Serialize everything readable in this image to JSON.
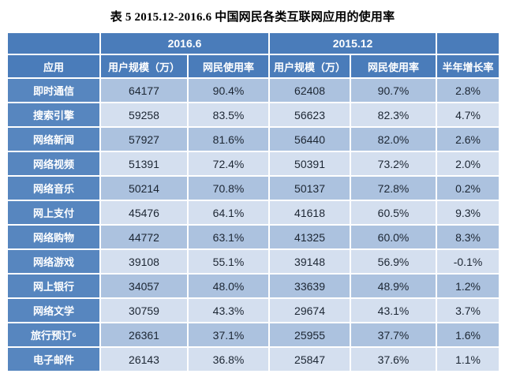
{
  "title": "表 5 2015.12-2016.6 中国网民各类互联网应用的使用率",
  "table": {
    "periods": {
      "p2016": "2016.6",
      "p2015": "2015.12"
    },
    "columns": [
      "应用",
      "用户规模（万）",
      "网民使用率",
      "用户规模（万）",
      "网民使用率",
      "半年增长率"
    ],
    "rows": [
      [
        "即时通信",
        "64177",
        "90.4%",
        "62408",
        "90.7%",
        "2.8%"
      ],
      [
        "搜索引擎",
        "59258",
        "83.5%",
        "56623",
        "82.3%",
        "4.7%"
      ],
      [
        "网络新闻",
        "57927",
        "81.6%",
        "56440",
        "82.0%",
        "2.6%"
      ],
      [
        "网络视频",
        "51391",
        "72.4%",
        "50391",
        "73.2%",
        "2.0%"
      ],
      [
        "网络音乐",
        "50214",
        "70.8%",
        "50137",
        "72.8%",
        "0.2%"
      ],
      [
        "网上支付",
        "45476",
        "64.1%",
        "41618",
        "60.5%",
        "9.3%"
      ],
      [
        "网络购物",
        "44772",
        "63.1%",
        "41325",
        "60.0%",
        "8.3%"
      ],
      [
        "网络游戏",
        "39108",
        "55.1%",
        "39148",
        "56.9%",
        "-0.1%"
      ],
      [
        "网上银行",
        "34057",
        "48.0%",
        "33639",
        "48.9%",
        "1.2%"
      ],
      [
        "网络文学",
        "30759",
        "43.3%",
        "29674",
        "43.1%",
        "3.7%"
      ],
      [
        "旅行预订⁶",
        "26361",
        "37.1%",
        "25955",
        "37.7%",
        "1.6%"
      ],
      [
        "电子邮件",
        "26143",
        "36.8%",
        "25847",
        "37.6%",
        "1.1%"
      ]
    ]
  },
  "colors": {
    "header_bg": "#4A7CBA",
    "row_label_bg": "#5786BF",
    "band_dark": "#ACC2DF",
    "band_light": "#D4DFEF",
    "header_text": "#FFFFFF",
    "data_text": "#1C2633"
  }
}
